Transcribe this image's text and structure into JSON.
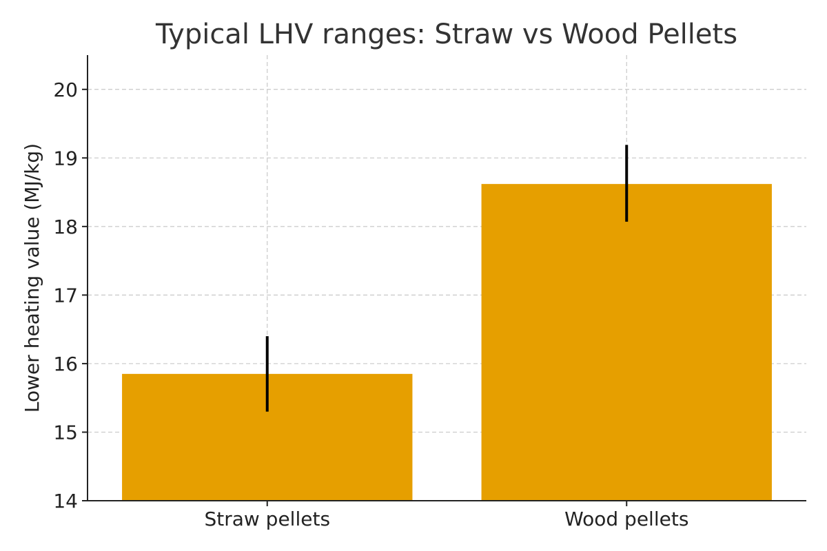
{
  "chart_data": {
    "type": "bar",
    "title": "Typical LHV ranges: Straw vs Wood Pellets",
    "xlabel": "",
    "ylabel": "Lower heating value (MJ/kg)",
    "categories": [
      "Straw pellets",
      "Wood pellets"
    ],
    "values": [
      15.85,
      18.62
    ],
    "error_ranges": [
      [
        15.3,
        16.4
      ],
      [
        18.07,
        19.19
      ]
    ],
    "ylim": [
      14,
      20.5
    ],
    "yticks": [
      14,
      15,
      16,
      17,
      18,
      19,
      20
    ],
    "grid": true,
    "colors": {
      "bar": "#E69F00",
      "error_bar": "#000000"
    }
  }
}
